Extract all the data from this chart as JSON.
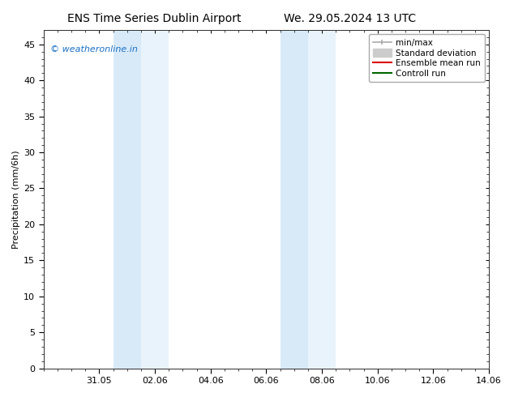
{
  "title_left": "ENS Time Series Dublin Airport",
  "title_right": "We. 29.05.2024 13 UTC",
  "ylabel": "Precipitation (mm/6h)",
  "background_color": "#ffffff",
  "plot_bg_color": "#ffffff",
  "ylim": [
    0,
    47
  ],
  "yticks": [
    0,
    5,
    10,
    15,
    20,
    25,
    30,
    35,
    40,
    45
  ],
  "xlim": [
    0,
    16
  ],
  "xtick_positions": [
    2,
    4,
    6,
    8,
    10,
    12,
    14,
    16
  ],
  "xtick_labels": [
    "31.05",
    "02.06",
    "04.06",
    "06.06",
    "08.06",
    "10.06",
    "12.06",
    "14.06"
  ],
  "shaded_regions": [
    {
      "x_start": 2.5,
      "x_end": 3.5,
      "color": "#d8eaf8"
    },
    {
      "x_start": 3.5,
      "x_end": 4.5,
      "color": "#e8f3fb"
    },
    {
      "x_start": 8.5,
      "x_end": 9.5,
      "color": "#d8eaf8"
    },
    {
      "x_start": 9.5,
      "x_end": 10.5,
      "color": "#e8f3fb"
    }
  ],
  "watermark_text": "© weatheronline.in",
  "watermark_color": "#1a6fc4",
  "watermark_fontsize": 8,
  "title_fontsize": 10,
  "axis_label_fontsize": 8,
  "tick_fontsize": 8,
  "legend_fontsize": 7.5,
  "legend_loc": "upper right",
  "minmax_color": "#aaaaaa",
  "std_color": "#cccccc",
  "mean_color": "#dd0000",
  "ctrl_color": "#006600"
}
